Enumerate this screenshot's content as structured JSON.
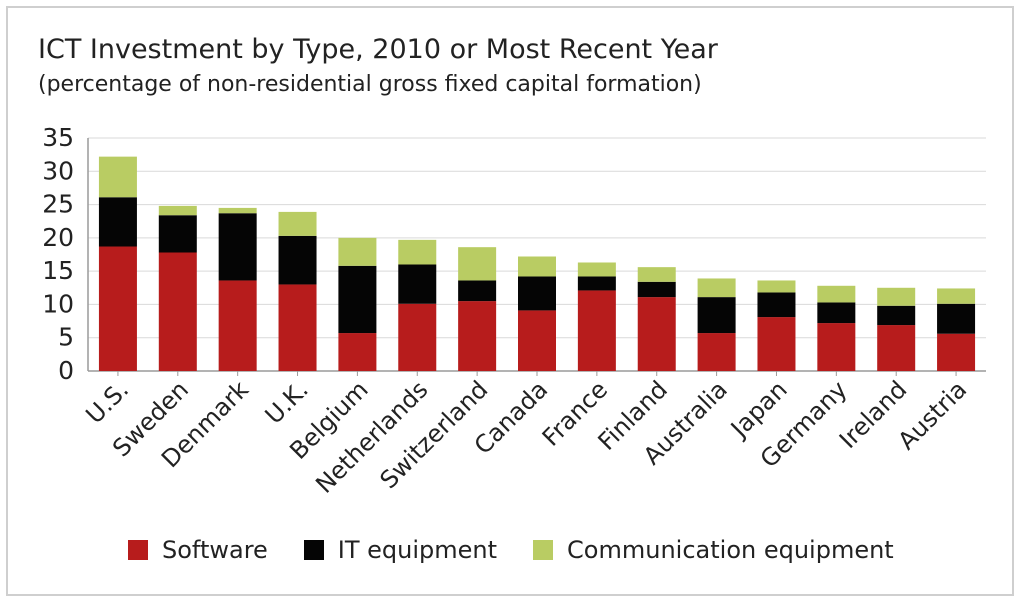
{
  "title": "ICT Investment by Type, 2010 or Most Recent Year",
  "subtitle": "(percentage of non-residential gross fixed capital formation)",
  "colors": {
    "software": "#b71c1c",
    "it_equipment": "#050505",
    "communication_equipment": "#b9cc63",
    "grid": "#d9d9d9",
    "axis": "#9a9a9a",
    "text": "#222222"
  },
  "legend": [
    {
      "label": "Software",
      "color": "#b71c1c"
    },
    {
      "label": "IT equipment",
      "color": "#050505"
    },
    {
      "label": "Communication equipment",
      "color": "#b9cc63"
    }
  ],
  "chart_data": {
    "type": "bar",
    "stacked": true,
    "title": "ICT Investment by Type, 2010 or Most Recent Year",
    "subtitle": "(percentage of non-residential gross fixed capital formation)",
    "xlabel": "",
    "ylabel": "",
    "ylim": [
      0,
      35
    ],
    "yticks": [
      0,
      5,
      10,
      15,
      20,
      25,
      30,
      35
    ],
    "grid": true,
    "legend_position": "bottom",
    "categories": [
      "U.S.",
      "Sweden",
      "Denmark",
      "U.K.",
      "Belgium",
      "Netherlands",
      "Switzerland",
      "Canada",
      "France",
      "Finland",
      "Australia",
      "Japan",
      "Germany",
      "Ireland",
      "Austria"
    ],
    "series": [
      {
        "name": "Software",
        "values": [
          18.7,
          17.8,
          13.6,
          13.0,
          5.7,
          10.1,
          10.5,
          9.1,
          12.1,
          11.1,
          5.7,
          8.1,
          7.2,
          6.9,
          5.6
        ]
      },
      {
        "name": "IT equipment",
        "values": [
          7.4,
          5.6,
          10.1,
          7.3,
          10.1,
          5.9,
          3.1,
          5.1,
          2.1,
          2.3,
          5.4,
          3.7,
          3.1,
          2.9,
          4.5
        ]
      },
      {
        "name": "Communication equipment",
        "values": [
          6.1,
          1.4,
          0.8,
          3.6,
          4.2,
          3.7,
          5.0,
          3.0,
          2.1,
          2.2,
          2.8,
          1.8,
          2.5,
          2.7,
          2.3
        ]
      }
    ]
  }
}
